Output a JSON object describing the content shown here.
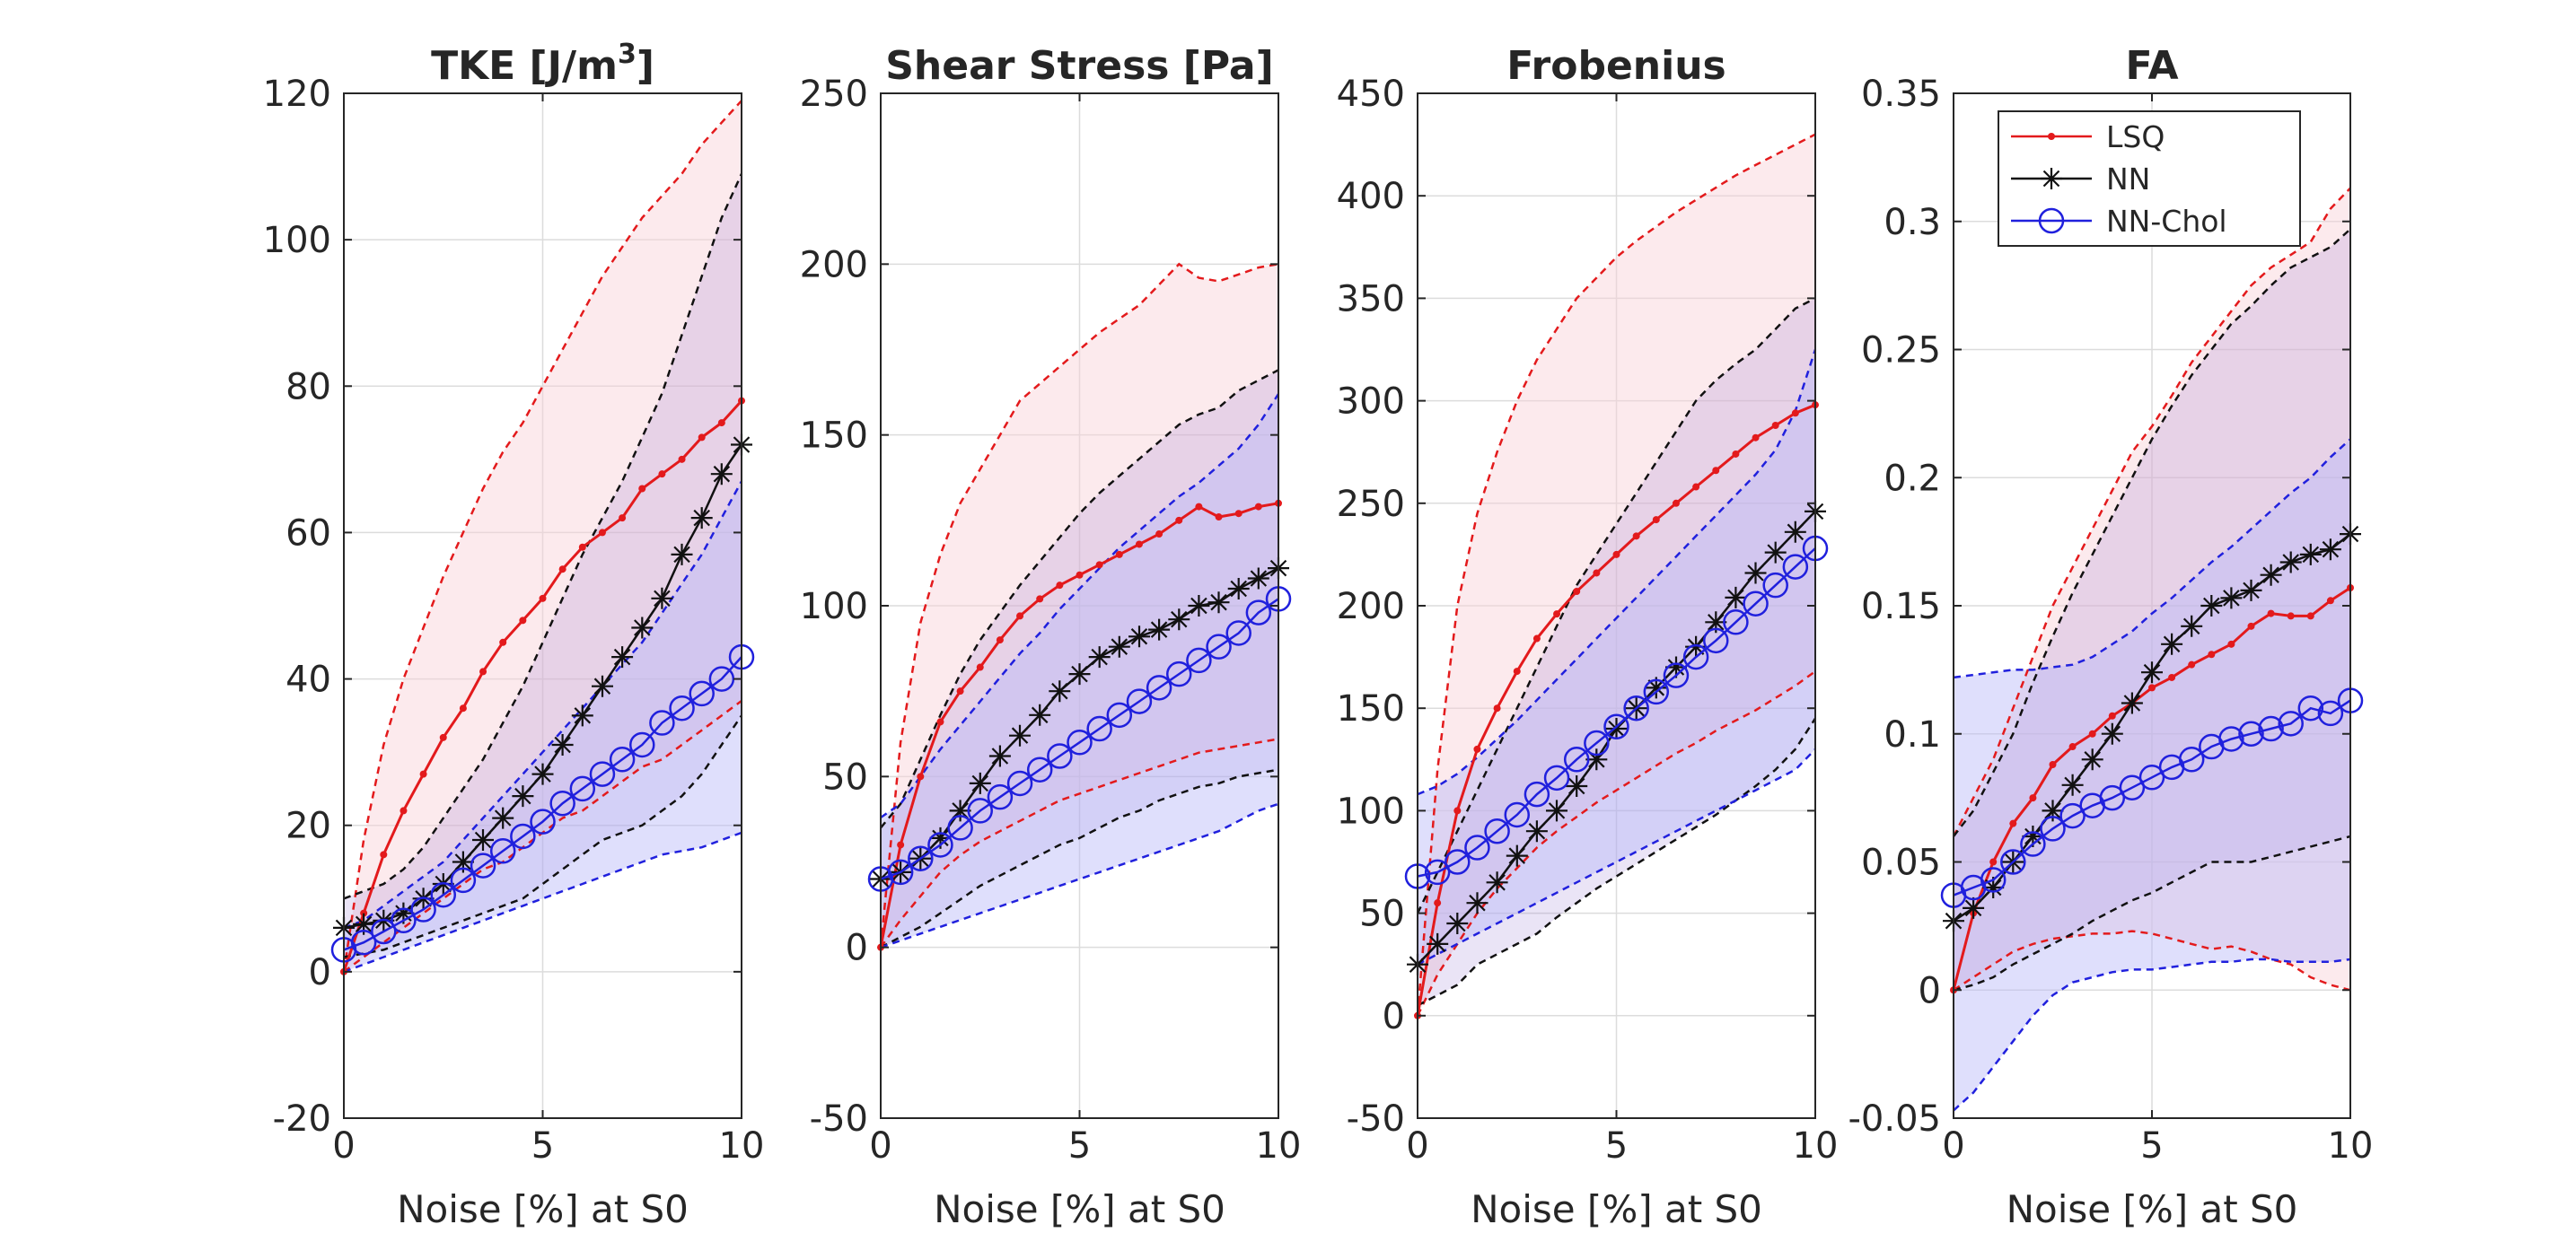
{
  "figure": {
    "xlabel": "Noise [%] at S0"
  },
  "colors": {
    "lsq": "#e31a1c",
    "nn": "#111111",
    "chol": "#2020dd",
    "lsq_band": "#f8d0d8",
    "chol_band": "#b8b8f8",
    "grid": "#dcdcdc",
    "axis": "#262626"
  },
  "legend": {
    "placement": "top-right of FA panel",
    "items": [
      {
        "name": "LSQ",
        "marker": "dot"
      },
      {
        "name": "NN",
        "marker": "star"
      },
      {
        "name": "NN-Chol",
        "marker": "circle"
      }
    ]
  },
  "chart_data": [
    {
      "type": "line",
      "title_main": "TKE [J/m",
      "title_sup": "3",
      "title_end": "]",
      "xlabel": "Noise [%] at S0",
      "xlim": [
        0,
        10
      ],
      "ylim": [
        -20,
        120
      ],
      "xticks": [
        0,
        5,
        10
      ],
      "yticks": [
        -20,
        0,
        20,
        40,
        60,
        80,
        100,
        120
      ],
      "grid": true,
      "x": [
        0,
        0.5,
        1,
        1.5,
        2,
        2.5,
        3,
        3.5,
        4,
        4.5,
        5,
        5.5,
        6,
        6.5,
        7,
        7.5,
        8,
        8.5,
        9,
        9.5,
        10
      ],
      "series": [
        {
          "name": "LSQ",
          "mean": [
            0,
            8,
            16,
            22,
            27,
            32,
            36,
            41,
            45,
            48,
            51,
            55,
            58,
            60,
            62,
            66,
            68,
            70,
            73,
            75,
            78
          ],
          "lower": [
            0,
            2,
            4,
            6,
            8,
            10,
            12,
            14,
            15,
            17,
            19,
            21,
            22,
            24,
            26,
            28,
            29,
            31,
            33,
            35,
            37
          ],
          "upper": [
            0,
            18,
            31,
            40,
            47,
            54,
            60,
            66,
            71,
            75,
            80,
            85,
            90,
            95,
            99,
            103,
            106,
            109,
            113,
            116,
            119
          ]
        },
        {
          "name": "NN",
          "mean": [
            6,
            6.5,
            7,
            8,
            10,
            12,
            15,
            18,
            21,
            24,
            27,
            31,
            35,
            39,
            43,
            47,
            51,
            57,
            62,
            68,
            72
          ],
          "lower": [
            2,
            2.5,
            3,
            4,
            5,
            6,
            7,
            8,
            9,
            10,
            12,
            14,
            16,
            18,
            19,
            20,
            22,
            24,
            27,
            31,
            35
          ],
          "upper": [
            10,
            11,
            12,
            14,
            17,
            21,
            25,
            29,
            34,
            39,
            45,
            51,
            57,
            62,
            67,
            73,
            79,
            87,
            95,
            103,
            109
          ]
        },
        {
          "name": "NN-Chol",
          "mean": [
            3,
            4,
            5.5,
            7,
            8.5,
            10.5,
            12.5,
            14.5,
            16.5,
            18.5,
            20.5,
            23,
            25,
            27,
            29,
            31,
            34,
            36,
            38,
            40,
            43
          ],
          "lower": [
            0,
            1,
            2,
            3,
            4,
            5,
            6,
            7,
            8,
            9,
            10,
            11,
            12,
            13,
            14,
            15,
            16,
            16.5,
            17,
            18,
            19
          ],
          "upper": [
            6,
            7,
            9,
            11,
            13,
            15,
            18,
            21,
            24,
            27,
            30,
            33,
            36,
            39,
            42,
            45,
            49,
            53,
            57,
            62,
            67
          ]
        }
      ]
    },
    {
      "type": "line",
      "title_main": "Shear Stress [Pa]",
      "title_sup": "",
      "title_end": "",
      "xlabel": "Noise [%] at S0",
      "xlim": [
        0,
        10
      ],
      "ylim": [
        -50,
        250
      ],
      "xticks": [
        0,
        5,
        10
      ],
      "yticks": [
        -50,
        0,
        50,
        100,
        150,
        200,
        250
      ],
      "grid": true,
      "x": [
        0,
        0.5,
        1,
        1.5,
        2,
        2.5,
        3,
        3.5,
        4,
        4.5,
        5,
        5.5,
        6,
        6.5,
        7,
        7.5,
        8,
        8.5,
        9,
        9.5,
        10
      ],
      "series": [
        {
          "name": "LSQ",
          "mean": [
            0,
            30,
            50,
            66,
            75,
            82,
            90,
            97,
            102,
            106,
            109,
            112,
            115,
            118,
            121,
            125,
            129,
            126,
            127,
            129,
            130
          ],
          "lower": [
            0,
            8,
            15,
            22,
            27,
            31,
            34,
            37,
            40,
            43,
            45,
            47,
            49,
            51,
            53,
            55,
            57,
            58,
            59,
            60,
            61
          ],
          "upper": [
            0,
            60,
            95,
            115,
            130,
            140,
            150,
            160,
            165,
            170,
            175,
            180,
            184,
            188,
            194,
            200,
            196,
            195,
            197,
            199,
            200
          ]
        },
        {
          "name": "NN",
          "mean": [
            20,
            22,
            26,
            32,
            40,
            48,
            56,
            62,
            68,
            75,
            80,
            85,
            88,
            91,
            93,
            96,
            100,
            101,
            105,
            108,
            111
          ],
          "lower": [
            0,
            3,
            6,
            10,
            14,
            18,
            21,
            24,
            27,
            30,
            32,
            35,
            38,
            40,
            43,
            45,
            47,
            48,
            50,
            51,
            52
          ],
          "upper": [
            35,
            42,
            55,
            68,
            80,
            90,
            98,
            106,
            113,
            120,
            127,
            133,
            138,
            143,
            148,
            153,
            156,
            158,
            163,
            166,
            169
          ]
        },
        {
          "name": "NN-Chol",
          "mean": [
            20,
            22,
            26,
            30,
            35,
            40,
            44,
            48,
            52,
            56,
            60,
            64,
            68,
            72,
            76,
            80,
            84,
            88,
            92,
            98,
            102
          ],
          "lower": [
            0,
            2,
            4,
            6,
            8,
            10,
            12,
            14,
            16,
            18,
            20,
            22,
            24,
            26,
            28,
            30,
            32,
            34,
            37,
            40,
            42
          ],
          "upper": [
            38,
            42,
            50,
            58,
            65,
            72,
            79,
            86,
            92,
            99,
            105,
            111,
            117,
            122,
            127,
            132,
            136,
            141,
            146,
            153,
            162
          ]
        }
      ]
    },
    {
      "type": "line",
      "title_main": "Frobenius",
      "title_sup": "",
      "title_end": "",
      "xlabel": "Noise [%] at S0",
      "xlim": [
        0,
        10
      ],
      "ylim": [
        -50,
        450
      ],
      "xticks": [
        0,
        5,
        10
      ],
      "yticks": [
        -50,
        0,
        50,
        100,
        150,
        200,
        250,
        300,
        350,
        400,
        450
      ],
      "grid": true,
      "x": [
        0,
        0.5,
        1,
        1.5,
        2,
        2.5,
        3,
        3.5,
        4,
        4.5,
        5,
        5.5,
        6,
        6.5,
        7,
        7.5,
        8,
        8.5,
        9,
        9.5,
        10
      ],
      "series": [
        {
          "name": "LSQ",
          "mean": [
            0,
            55,
            100,
            130,
            150,
            168,
            184,
            196,
            207,
            216,
            225,
            234,
            242,
            250,
            258,
            266,
            274,
            282,
            288,
            294,
            298
          ],
          "lower": [
            0,
            20,
            35,
            50,
            62,
            72,
            82,
            90,
            97,
            104,
            110,
            116,
            122,
            128,
            133,
            139,
            144,
            149,
            155,
            161,
            168
          ],
          "upper": [
            0,
            120,
            200,
            245,
            275,
            300,
            320,
            335,
            350,
            360,
            370,
            378,
            385,
            392,
            398,
            404,
            410,
            415,
            420,
            425,
            430
          ]
        },
        {
          "name": "NN",
          "mean": [
            25,
            35,
            45,
            55,
            65,
            78,
            90,
            100,
            112,
            125,
            140,
            150,
            160,
            170,
            180,
            192,
            204,
            216,
            226,
            236,
            246
          ],
          "lower": [
            5,
            10,
            15,
            25,
            30,
            35,
            40,
            48,
            55,
            62,
            68,
            74,
            80,
            86,
            92,
            98,
            105,
            112,
            120,
            130,
            145
          ],
          "upper": [
            50,
            70,
            90,
            110,
            130,
            150,
            170,
            190,
            210,
            225,
            240,
            255,
            270,
            285,
            300,
            310,
            318,
            325,
            335,
            345,
            350
          ]
        },
        {
          "name": "NN-Chol",
          "mean": [
            68,
            70,
            75,
            82,
            90,
            98,
            108,
            116,
            125,
            133,
            141,
            150,
            158,
            166,
            175,
            183,
            192,
            201,
            210,
            219,
            228
          ],
          "lower": [
            25,
            30,
            35,
            40,
            45,
            50,
            55,
            60,
            65,
            70,
            75,
            80,
            85,
            90,
            95,
            100,
            105,
            110,
            115,
            120,
            130
          ],
          "upper": [
            108,
            112,
            118,
            126,
            135,
            144,
            154,
            164,
            174,
            184,
            194,
            204,
            214,
            224,
            234,
            244,
            254,
            264,
            276,
            295,
            325
          ]
        }
      ]
    },
    {
      "type": "line",
      "title_main": "FA",
      "title_sup": "",
      "title_end": "",
      "xlabel": "Noise [%] at S0",
      "xlim": [
        0,
        10
      ],
      "ylim": [
        -0.05,
        0.35
      ],
      "xticks": [
        0,
        5,
        10
      ],
      "yticks": [
        -0.05,
        0,
        0.05,
        0.1,
        0.15,
        0.2,
        0.25,
        0.3,
        0.35
      ],
      "grid": true,
      "x": [
        0,
        0.5,
        1,
        1.5,
        2,
        2.5,
        3,
        3.5,
        4,
        4.5,
        5,
        5.5,
        6,
        6.5,
        7,
        7.5,
        8,
        8.5,
        9,
        9.5,
        10
      ],
      "series": [
        {
          "name": "LSQ",
          "mean": [
            0,
            0.03,
            0.05,
            0.065,
            0.075,
            0.088,
            0.095,
            0.1,
            0.107,
            0.112,
            0.118,
            0.122,
            0.127,
            0.131,
            0.135,
            0.142,
            0.147,
            0.146,
            0.146,
            0.152,
            0.157
          ],
          "lower": [
            0,
            0.005,
            0.01,
            0.015,
            0.018,
            0.02,
            0.021,
            0.022,
            0.022,
            0.023,
            0.022,
            0.02,
            0.018,
            0.016,
            0.017,
            0.015,
            0.012,
            0.01,
            0.005,
            0.002,
            0
          ],
          "upper": [
            0.06,
            0.075,
            0.09,
            0.11,
            0.13,
            0.15,
            0.165,
            0.18,
            0.195,
            0.21,
            0.22,
            0.232,
            0.245,
            0.255,
            0.265,
            0.275,
            0.282,
            0.287,
            0.292,
            0.305,
            0.313
          ]
        },
        {
          "name": "NN",
          "mean": [
            0.027,
            0.032,
            0.04,
            0.05,
            0.06,
            0.07,
            0.08,
            0.09,
            0.1,
            0.112,
            0.124,
            0.135,
            0.142,
            0.15,
            0.153,
            0.156,
            0.162,
            0.167,
            0.17,
            0.172,
            0.178
          ],
          "lower": [
            0,
            0.002,
            0.005,
            0.01,
            0.014,
            0.018,
            0.022,
            0.027,
            0.031,
            0.035,
            0.038,
            0.042,
            0.046,
            0.05,
            0.05,
            0.05,
            0.052,
            0.054,
            0.056,
            0.058,
            0.06
          ],
          "upper": [
            0.06,
            0.07,
            0.085,
            0.1,
            0.12,
            0.138,
            0.155,
            0.17,
            0.185,
            0.2,
            0.215,
            0.228,
            0.24,
            0.25,
            0.26,
            0.267,
            0.275,
            0.282,
            0.286,
            0.29,
            0.297
          ]
        },
        {
          "name": "NN-Chol",
          "mean": [
            0.037,
            0.04,
            0.043,
            0.05,
            0.057,
            0.063,
            0.068,
            0.072,
            0.075,
            0.079,
            0.083,
            0.087,
            0.09,
            0.095,
            0.098,
            0.1,
            0.102,
            0.104,
            0.11,
            0.108,
            0.113
          ],
          "lower": [
            -0.047,
            -0.04,
            -0.03,
            -0.02,
            -0.01,
            -0.002,
            0.003,
            0.005,
            0.007,
            0.008,
            0.008,
            0.009,
            0.01,
            0.011,
            0.011,
            0.012,
            0.012,
            0.011,
            0.011,
            0.011,
            0.012
          ],
          "upper": [
            0.122,
            0.123,
            0.124,
            0.125,
            0.125,
            0.126,
            0.127,
            0.13,
            0.135,
            0.14,
            0.147,
            0.153,
            0.16,
            0.167,
            0.173,
            0.18,
            0.187,
            0.194,
            0.2,
            0.208,
            0.215
          ]
        }
      ]
    }
  ]
}
